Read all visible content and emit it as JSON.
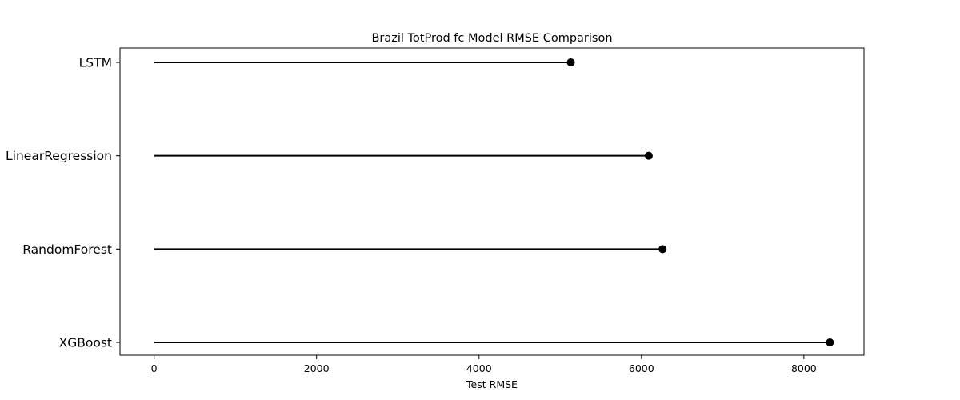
{
  "chart_data": {
    "type": "lollipop",
    "title": "Brazil TotProd fc Model RMSE Comparison",
    "xlabel": "Test RMSE",
    "ylabel": "",
    "categories": [
      "LSTM",
      "LinearRegression",
      "RandomForest",
      "XGBoost"
    ],
    "values": [
      5130,
      6090,
      6260,
      8320
    ],
    "xlim": [
      -420,
      8740
    ],
    "xticks": [
      0,
      2000,
      4000,
      6000,
      8000
    ],
    "xtick_labels": [
      "0",
      "2000",
      "4000",
      "6000",
      "8000"
    ],
    "grid": false,
    "legend": "none",
    "colors": {
      "line": "#000000",
      "marker": "#000000",
      "frame": "#000000"
    }
  }
}
